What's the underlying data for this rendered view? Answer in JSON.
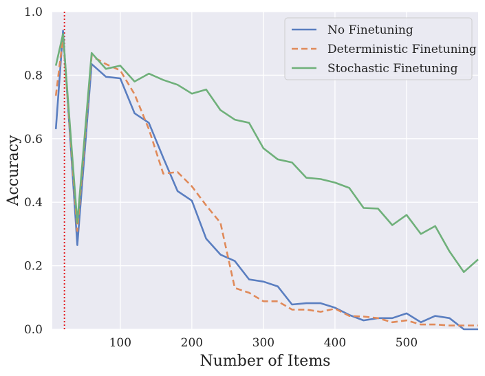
{
  "chart_data": {
    "type": "line",
    "xlabel": "Number of Items",
    "ylabel": "Accuracy",
    "xlim": [
      5,
      600
    ],
    "ylim": [
      0.0,
      1.0
    ],
    "xticks": [
      100,
      200,
      300,
      400,
      500
    ],
    "xtick_labels": [
      "100",
      "200",
      "300",
      "400",
      "500"
    ],
    "yticks": [
      0.0,
      0.2,
      0.4,
      0.6,
      0.8,
      1.0
    ],
    "ytick_labels": [
      "0.0",
      "0.2",
      "0.4",
      "0.6",
      "0.8",
      "1.0"
    ],
    "grid": true,
    "legend_position": "top-right",
    "reference_line": {
      "x": 22,
      "color": "#e31a1c",
      "style": "dotted"
    },
    "series": [
      {
        "name": "No Finetuning",
        "color": "#5a7ec0",
        "dash": "solid",
        "x": [
          10,
          20,
          40,
          60,
          80,
          100,
          120,
          140,
          160,
          180,
          200,
          220,
          240,
          260,
          280,
          300,
          320,
          340,
          360,
          380,
          400,
          420,
          440,
          460,
          480,
          500,
          520,
          540,
          560,
          580,
          600
        ],
        "y": [
          0.63,
          0.94,
          0.265,
          0.835,
          0.795,
          0.79,
          0.68,
          0.65,
          0.54,
          0.435,
          0.405,
          0.285,
          0.235,
          0.215,
          0.157,
          0.15,
          0.135,
          0.078,
          0.082,
          0.082,
          0.068,
          0.045,
          0.028,
          0.035,
          0.035,
          0.05,
          0.022,
          0.042,
          0.035,
          0.0,
          0.0
        ]
      },
      {
        "name": "Deterministic Finetuning",
        "color": "#e08a5a",
        "dash": "dashed",
        "x": [
          10,
          20,
          40,
          60,
          80,
          100,
          120,
          140,
          160,
          180,
          200,
          220,
          240,
          260,
          280,
          300,
          320,
          340,
          360,
          380,
          400,
          420,
          440,
          460,
          480,
          500,
          520,
          540,
          560,
          580,
          600
        ],
        "y": [
          0.735,
          0.92,
          0.31,
          0.86,
          0.835,
          0.815,
          0.74,
          0.63,
          0.49,
          0.495,
          0.45,
          0.39,
          0.335,
          0.13,
          0.115,
          0.088,
          0.088,
          0.062,
          0.062,
          0.055,
          0.065,
          0.042,
          0.04,
          0.035,
          0.022,
          0.028,
          0.015,
          0.015,
          0.012,
          0.012,
          0.012
        ]
      },
      {
        "name": "Stochastic Finetuning",
        "color": "#6fb07a",
        "dash": "solid",
        "x": [
          10,
          20,
          40,
          60,
          80,
          100,
          120,
          140,
          160,
          180,
          200,
          220,
          240,
          260,
          280,
          300,
          320,
          340,
          360,
          380,
          400,
          420,
          440,
          460,
          480,
          500,
          520,
          540,
          560,
          580,
          600
        ],
        "y": [
          0.83,
          0.93,
          0.335,
          0.87,
          0.82,
          0.83,
          0.78,
          0.805,
          0.785,
          0.77,
          0.742,
          0.755,
          0.69,
          0.66,
          0.65,
          0.57,
          0.535,
          0.525,
          0.477,
          0.473,
          0.462,
          0.445,
          0.382,
          0.38,
          0.328,
          0.36,
          0.3,
          0.325,
          0.245,
          0.18,
          0.22
        ]
      }
    ]
  }
}
